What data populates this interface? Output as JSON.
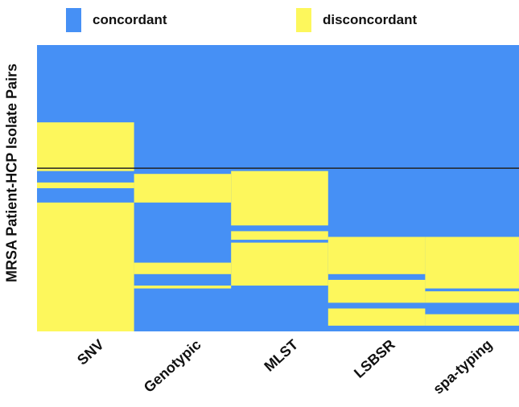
{
  "chart_data": {
    "type": "heatmap",
    "title": "",
    "ylabel": "MRSA Patient-HCP Isolate Pairs",
    "xlabel": "",
    "categories": [
      "SNV",
      "Genotypic",
      "MLST",
      "LSBSR",
      "spa-typing"
    ],
    "legend": {
      "placement": "top",
      "items": [
        {
          "key": "concordant",
          "label": "concordant",
          "color": "#4690f5"
        },
        {
          "key": "disconcordant",
          "label": "disconcordant",
          "color": "#fdf75c"
        }
      ]
    },
    "colors": {
      "concordant": "#4690f5",
      "disconcordant": "#fdf75c",
      "divider": "#222222"
    },
    "row_count": 100,
    "divider_after_row": 43,
    "columns": [
      {
        "name": "SNV",
        "disconcordant_rows": [
          [
            27,
            44
          ],
          [
            48,
            50
          ],
          [
            55,
            100
          ]
        ]
      },
      {
        "name": "Genotypic",
        "disconcordant_rows": [
          [
            45,
            55
          ],
          [
            76,
            80
          ],
          [
            84,
            85
          ]
        ]
      },
      {
        "name": "MLST",
        "disconcordant_rows": [
          [
            44,
            63
          ],
          [
            65,
            68
          ],
          [
            69,
            84
          ]
        ]
      },
      {
        "name": "LSBSR",
        "disconcordant_rows": [
          [
            67,
            80
          ],
          [
            82,
            90
          ],
          [
            92,
            98
          ]
        ]
      },
      {
        "name": "spa-typing",
        "disconcordant_rows": [
          [
            67,
            85
          ],
          [
            86,
            90
          ],
          [
            94,
            98
          ]
        ]
      }
    ]
  }
}
